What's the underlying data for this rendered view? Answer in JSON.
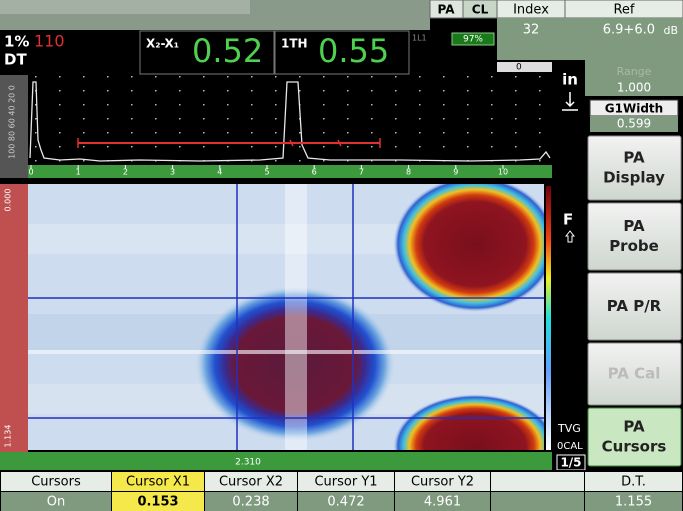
{
  "top_bar": {
    "pa": "PA",
    "cl": "CL",
    "index_label": "Index",
    "index_value": "32",
    "ref_label": "Ref",
    "ref_value": "6.9+6.0",
    "ref_unit": "dB",
    "battery": "97%"
  },
  "readouts": {
    "gate": "1%",
    "gate_value": "110",
    "mode": "DT",
    "r1_label": "X₂-X₁",
    "r1_value": "0.52",
    "r2_label": "1TH",
    "r2_value": "0.55",
    "r3_label": "1L1"
  },
  "side": {
    "zero": "0",
    "unit": "in",
    "range_label": "Range",
    "range_value": "1.000",
    "width_label": "G1Width",
    "width_value": "0.599",
    "focus": "F",
    "tvg": "TVG",
    "cal": "0CAL",
    "page": "1/5"
  },
  "ascan": {
    "amplitude_scale": "100 80 60 40 20 0",
    "axis": [
      "0",
      "1",
      "2",
      "3",
      "4",
      "5",
      "6",
      "7",
      "8",
      "9",
      "10"
    ]
  },
  "bscan": {
    "top": "0.000",
    "bottom": "1.134",
    "cursor_readout": "2.310"
  },
  "menu": [
    {
      "lines": [
        "PA",
        "Display"
      ]
    },
    {
      "lines": [
        "PA",
        "Probe"
      ]
    },
    {
      "lines": [
        "PA P/R"
      ]
    },
    {
      "lines": [
        "PA Cal"
      ]
    },
    {
      "lines": [
        "PA",
        "Cursors"
      ]
    }
  ],
  "parameters": [
    {
      "label": "Cursors",
      "value": "On"
    },
    {
      "label": "Cursor X1",
      "value": "0.153"
    },
    {
      "label": "Cursor X2",
      "value": "0.238"
    },
    {
      "label": "Cursor Y1",
      "value": "0.472"
    },
    {
      "label": "Cursor Y2",
      "value": "4.961"
    },
    {
      "label": "D.T.",
      "value": "1.155"
    }
  ]
}
